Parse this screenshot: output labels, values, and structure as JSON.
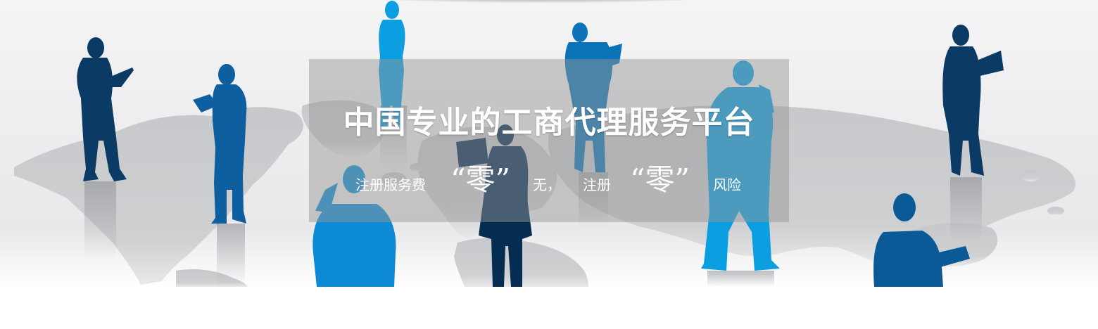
{
  "banner": {
    "headline": "中国专业的工商代理服务平台",
    "tagline": {
      "part1": "注册服务费",
      "zero1": "“零”",
      "part2": "无，",
      "part3": "注册",
      "zero2": "“零”",
      "part4": "风险"
    }
  },
  "colors": {
    "overlay": "#969696",
    "map": "#c4c6c9",
    "silhouette_dark": "#0b3a64",
    "silhouette_mid": "#0d5fa0",
    "silhouette_light": "#0b9ee0",
    "text": "#ffffff"
  }
}
